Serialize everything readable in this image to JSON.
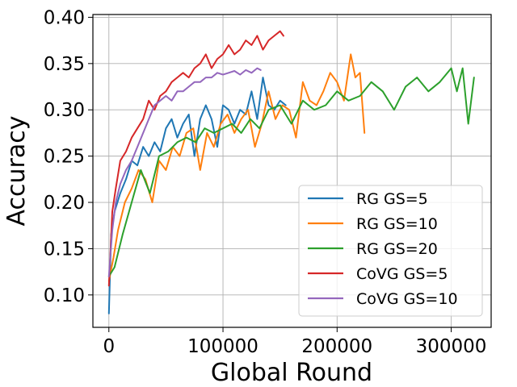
{
  "chart_data": {
    "type": "line",
    "title": "",
    "xlabel": "Global Round",
    "ylabel": "Accuracy",
    "xlim": [
      -14000,
      335000
    ],
    "ylim": [
      0.065,
      0.403
    ],
    "xticks": [
      0,
      100000,
      200000,
      300000
    ],
    "xtick_labels": [
      "0",
      "100000",
      "200000",
      "300000"
    ],
    "yticks": [
      0.1,
      0.15,
      0.2,
      0.25,
      0.3,
      0.35,
      0.4
    ],
    "ytick_labels": [
      "0.10",
      "0.15",
      "0.20",
      "0.25",
      "0.30",
      "0.35",
      "0.40"
    ],
    "grid": true,
    "legend_position": "lower-right",
    "series": [
      {
        "name": "RG GS=5",
        "color": "#1f77b4",
        "x": [
          0,
          2000,
          5000,
          10000,
          15000,
          20000,
          25000,
          30000,
          35000,
          40000,
          45000,
          50000,
          55000,
          60000,
          65000,
          70000,
          75000,
          80000,
          85000,
          90000,
          95000,
          100000,
          105000,
          110000,
          115000,
          120000,
          125000,
          130000,
          135000,
          140000,
          145000,
          150000,
          155000
        ],
        "y": [
          0.08,
          0.165,
          0.19,
          0.21,
          0.225,
          0.245,
          0.24,
          0.26,
          0.25,
          0.265,
          0.255,
          0.28,
          0.29,
          0.27,
          0.285,
          0.295,
          0.25,
          0.29,
          0.305,
          0.29,
          0.26,
          0.305,
          0.3,
          0.285,
          0.3,
          0.295,
          0.32,
          0.29,
          0.335,
          0.305,
          0.3,
          0.31,
          0.305
        ]
      },
      {
        "name": "RG GS=10",
        "color": "#ff7f0e",
        "x": [
          0,
          4000,
          8000,
          14000,
          20000,
          26000,
          32000,
          38000,
          44000,
          50000,
          56000,
          62000,
          68000,
          74000,
          80000,
          86000,
          92000,
          98000,
          104000,
          110000,
          116000,
          122000,
          128000,
          134000,
          140000,
          146000,
          152000,
          158000,
          164000,
          170000,
          176000,
          182000,
          188000,
          194000,
          200000,
          206000,
          212000,
          216000,
          220000,
          224000
        ],
        "y": [
          0.115,
          0.14,
          0.17,
          0.2,
          0.215,
          0.235,
          0.225,
          0.2,
          0.245,
          0.235,
          0.26,
          0.25,
          0.275,
          0.28,
          0.235,
          0.275,
          0.26,
          0.285,
          0.295,
          0.275,
          0.29,
          0.3,
          0.26,
          0.285,
          0.32,
          0.29,
          0.305,
          0.3,
          0.27,
          0.33,
          0.31,
          0.305,
          0.32,
          0.34,
          0.33,
          0.31,
          0.36,
          0.335,
          0.34,
          0.275
        ]
      },
      {
        "name": "RG GS=20",
        "color": "#2ca02c",
        "x": [
          0,
          5000,
          12000,
          20000,
          28000,
          36000,
          44000,
          52000,
          60000,
          68000,
          76000,
          84000,
          92000,
          100000,
          108000,
          116000,
          124000,
          132000,
          140000,
          150000,
          160000,
          170000,
          180000,
          190000,
          200000,
          210000,
          220000,
          230000,
          240000,
          250000,
          260000,
          270000,
          280000,
          290000,
          300000,
          305000,
          310000,
          315000,
          320000
        ],
        "y": [
          0.12,
          0.13,
          0.165,
          0.2,
          0.235,
          0.21,
          0.25,
          0.255,
          0.265,
          0.27,
          0.265,
          0.28,
          0.275,
          0.28,
          0.285,
          0.275,
          0.29,
          0.28,
          0.3,
          0.305,
          0.285,
          0.31,
          0.3,
          0.305,
          0.32,
          0.31,
          0.315,
          0.33,
          0.32,
          0.3,
          0.325,
          0.335,
          0.32,
          0.33,
          0.345,
          0.32,
          0.345,
          0.285,
          0.335
        ]
      },
      {
        "name": "CoVG GS=5",
        "color": "#d62728",
        "x": [
          0,
          3000,
          6000,
          10000,
          15000,
          20000,
          25000,
          30000,
          35000,
          40000,
          45000,
          50000,
          55000,
          60000,
          65000,
          70000,
          75000,
          80000,
          85000,
          90000,
          95000,
          100000,
          105000,
          110000,
          115000,
          120000,
          125000,
          130000,
          135000,
          140000,
          145000,
          150000,
          153000
        ],
        "y": [
          0.11,
          0.19,
          0.215,
          0.245,
          0.255,
          0.27,
          0.28,
          0.29,
          0.31,
          0.3,
          0.315,
          0.32,
          0.33,
          0.335,
          0.34,
          0.335,
          0.345,
          0.35,
          0.36,
          0.345,
          0.355,
          0.36,
          0.37,
          0.36,
          0.365,
          0.375,
          0.37,
          0.38,
          0.365,
          0.375,
          0.38,
          0.385,
          0.38
        ]
      },
      {
        "name": "CoVG GS=10",
        "color": "#9467bd",
        "x": [
          0,
          3000,
          6000,
          10000,
          15000,
          20000,
          25000,
          30000,
          35000,
          40000,
          45000,
          50000,
          55000,
          60000,
          65000,
          70000,
          75000,
          80000,
          85000,
          90000,
          95000,
          100000,
          105000,
          110000,
          115000,
          120000,
          125000,
          130000,
          133000
        ],
        "y": [
          0.12,
          0.17,
          0.2,
          0.22,
          0.235,
          0.245,
          0.26,
          0.275,
          0.29,
          0.305,
          0.31,
          0.315,
          0.31,
          0.32,
          0.32,
          0.325,
          0.33,
          0.33,
          0.335,
          0.335,
          0.34,
          0.338,
          0.34,
          0.342,
          0.338,
          0.343,
          0.34,
          0.345,
          0.343
        ]
      }
    ]
  }
}
